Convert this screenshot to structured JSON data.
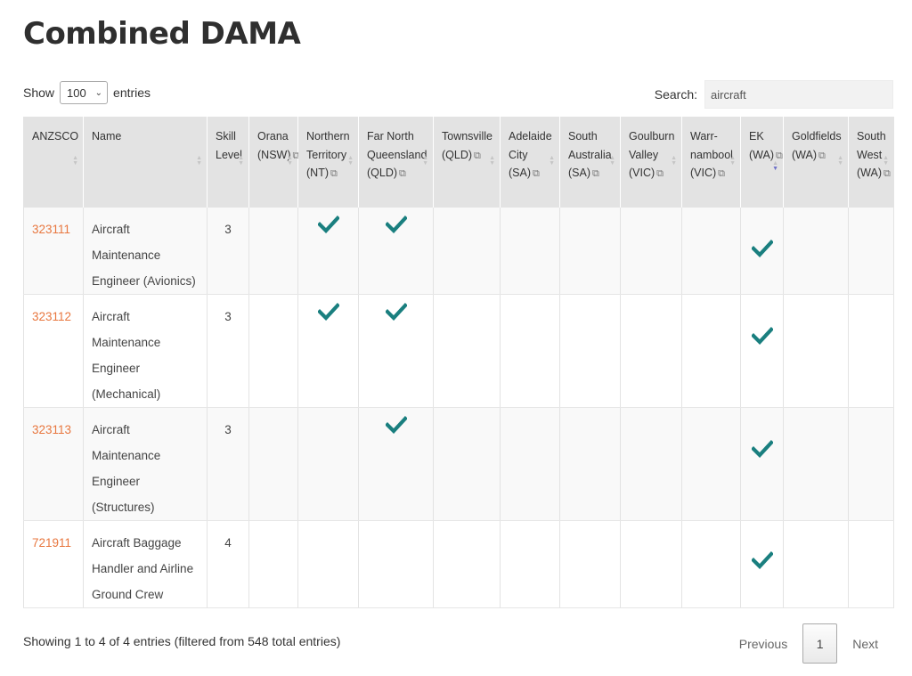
{
  "page": {
    "title": "Combined DAMA"
  },
  "controls": {
    "show_label": "Show",
    "entries_label": "entries",
    "length_value": "100",
    "search_label": "Search:",
    "search_value": "aircraft"
  },
  "table": {
    "headers": [
      {
        "lines": [
          "ANZSCO"
        ],
        "ext": false
      },
      {
        "lines": [
          "Name"
        ],
        "ext": false
      },
      {
        "lines": [
          "Skill",
          "Level"
        ],
        "ext": false
      },
      {
        "lines": [
          "Orana",
          "(NSW)"
        ],
        "ext": true
      },
      {
        "lines": [
          "Northern",
          "Territory",
          "(NT)"
        ],
        "ext": true
      },
      {
        "lines": [
          "Far North",
          "Queensland",
          "(QLD)"
        ],
        "ext": true
      },
      {
        "lines": [
          "Townsville",
          "(QLD)"
        ],
        "ext": true
      },
      {
        "lines": [
          "Adelaide",
          "City (SA)"
        ],
        "ext": true
      },
      {
        "lines": [
          "South",
          "Australia",
          "(SA)"
        ],
        "ext": true
      },
      {
        "lines": [
          "Goulburn",
          "Valley",
          "(VIC)"
        ],
        "ext": true
      },
      {
        "lines": [
          "Warr-",
          "nambool",
          "(VIC)"
        ],
        "ext": true
      },
      {
        "lines": [
          "EK",
          "(WA)"
        ],
        "ext": true
      },
      {
        "lines": [
          "Goldfields",
          "(WA)"
        ],
        "ext": true
      },
      {
        "lines": [
          "South",
          "West",
          "(WA)"
        ],
        "ext": true
      }
    ],
    "rows": [
      {
        "code": "323111",
        "name_lines": [
          "Aircraft",
          "Maintenance",
          "Engineer (Avionics)"
        ],
        "skill": "3",
        "marks": [
          false,
          true,
          true,
          false,
          false,
          false,
          false,
          false,
          true,
          false,
          false
        ]
      },
      {
        "code": "323112",
        "name_lines": [
          "Aircraft",
          "Maintenance",
          "Engineer",
          "(Mechanical)"
        ],
        "skill": "3",
        "marks": [
          false,
          true,
          true,
          false,
          false,
          false,
          false,
          false,
          true,
          false,
          false
        ]
      },
      {
        "code": "323113",
        "name_lines": [
          "Aircraft",
          "Maintenance",
          "Engineer",
          "(Structures)"
        ],
        "skill": "3",
        "marks": [
          false,
          false,
          true,
          false,
          false,
          false,
          false,
          false,
          true,
          false,
          false
        ]
      },
      {
        "code": "721911",
        "name_lines": [
          "Aircraft Baggage",
          "Handler and Airline",
          "Ground Crew"
        ],
        "skill": "4",
        "marks": [
          false,
          false,
          false,
          false,
          false,
          false,
          false,
          false,
          true,
          false,
          false
        ]
      }
    ],
    "check_color": "#1a7f7f",
    "code_color": "#e8773f",
    "sort_active_color": "#6f72c9"
  },
  "footer": {
    "info": "Showing 1 to 4 of 4 entries (filtered from 548 total entries)",
    "previous": "Previous",
    "current_page": "1",
    "next": "Next"
  }
}
